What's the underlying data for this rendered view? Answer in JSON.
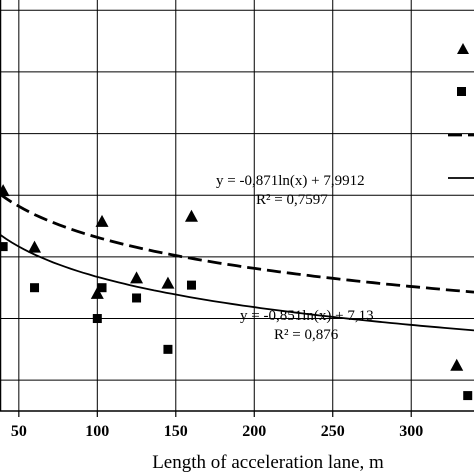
{
  "chart_data": {
    "type": "scatter",
    "xlabel": "Length of acceleration lane, m",
    "ylabel": "",
    "x_ticks": [
      50,
      100,
      150,
      200,
      250,
      300
    ],
    "xlim": [
      38,
      340
    ],
    "ylim": [
      0.6,
      8.6
    ],
    "y_gridlines": [
      1.2,
      2.4,
      3.6,
      4.8,
      6.0,
      7.2,
      8.4
    ],
    "grid": true,
    "series": [
      {
        "marker": "triangle",
        "color": "#000000",
        "points": [
          {
            "x": 40,
            "y": 4.9
          },
          {
            "x": 60,
            "y": 3.8
          },
          {
            "x": 100,
            "y": 2.9
          },
          {
            "x": 103,
            "y": 4.3
          },
          {
            "x": 125,
            "y": 3.2
          },
          {
            "x": 145,
            "y": 3.1
          },
          {
            "x": 160,
            "y": 4.4
          },
          {
            "x": 329,
            "y": 1.5
          }
        ]
      },
      {
        "marker": "square",
        "color": "#000000",
        "points": [
          {
            "x": 40,
            "y": 3.8
          },
          {
            "x": 60,
            "y": 3.0
          },
          {
            "x": 100,
            "y": 2.4
          },
          {
            "x": 103,
            "y": 3.0
          },
          {
            "x": 125,
            "y": 2.8
          },
          {
            "x": 145,
            "y": 1.8
          },
          {
            "x": 160,
            "y": 3.05
          },
          {
            "x": 336,
            "y": 0.9
          }
        ]
      }
    ],
    "trendlines": [
      {
        "style": "dashed",
        "a": -0.871,
        "b": 7.9912,
        "x_from": 38,
        "x_to": 340,
        "equation": "y = -0,871ln(x) + 7,9912",
        "r2": "R² = 0,7597"
      },
      {
        "style": "solid",
        "a": -0.851,
        "b": 7.13,
        "x_from": 38,
        "x_to": 340,
        "equation": "y = -0,851ln(x) + 7,13",
        "r2": "R² = 0,876"
      }
    ]
  }
}
